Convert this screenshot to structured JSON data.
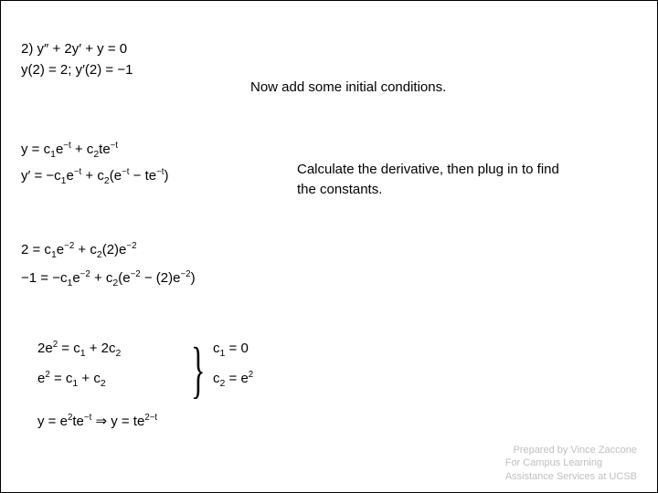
{
  "colors": {
    "text": "#000000",
    "footer": "#bfbfbf",
    "background": "#ffffff"
  },
  "fonts": {
    "body_family": "Verdana",
    "body_size_pt": 11,
    "footer_size_pt": 8
  },
  "problem": {
    "line1": "2) y″ + 2y′ + y = 0",
    "line2": "y(2) = 2; y′(2) = −1"
  },
  "annotation1": "Now add some initial conditions.",
  "general_solution": {
    "line1_html": "y = c<sub>1</sub>e<sup>−t</sup> + c<sub>2</sub>te<sup>−t</sup>",
    "line2_html": "y′ = −c<sub>1</sub>e<sup>−t</sup> + c<sub>2</sub>(e<sup>−t</sup> − te<sup>−t</sup>)"
  },
  "annotation2": "Calculate the derivative, then plug in to find the constants.",
  "plugged": {
    "line1_html": "2 = c<sub>1</sub>e<sup>−2</sup> + c<sub>2</sub>(2)e<sup>−2</sup>",
    "line2_html": "−1 = −c<sub>1</sub>e<sup>−2</sup> + c<sub>2</sub>(e<sup>−2</sup> − (2)e<sup>−2</sup>)"
  },
  "simplified": {
    "line1_html": "2e<sup>2</sup> = c<sub>1</sub> + 2c<sub>2</sub>",
    "line2_html": "e<sup>2</sup> = c<sub>1</sub> + c<sub>2</sub>"
  },
  "constants": {
    "line1_html": "c<sub>1</sub> = 0",
    "line2_html": "c<sub>2</sub> = e<sup>2</sup>"
  },
  "final_html": "y = e<sup>2</sup>te<sup>−t</sup> ⇒ y = te<sup>2−t</sup>",
  "footer": {
    "line1": "Prepared by Vince Zaccone",
    "line2": "For Campus Learning\nAssistance Services at UCSB"
  }
}
